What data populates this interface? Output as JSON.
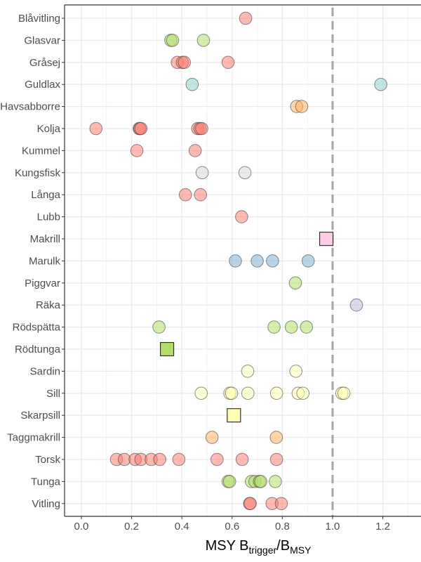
{
  "chart_data": {
    "type": "scatter",
    "xlabel": {
      "main": "MSY B",
      "sub1": "trigger",
      "sep": "/B",
      "sub2": "MSY"
    },
    "xlim": [
      -0.067,
      1.352
    ],
    "xticks": [
      "0.0",
      "0.2",
      "0.4",
      "0.6",
      "0.8",
      "1.0",
      "1.2"
    ],
    "grid": true,
    "reference_line": {
      "x": 1.0,
      "style": "dashed",
      "color": "#a6a6a6"
    },
    "categories": [
      "Blåvitling",
      "Glasvar",
      "Gråsej",
      "Guldlax",
      "Havsabborre",
      "Kolja",
      "Kummel",
      "Kungsfisk",
      "Långa",
      "Lubb",
      "Makrill",
      "Marulk",
      "Piggvar",
      "Räka",
      "Rödspätta",
      "Rödtunga",
      "Sardin",
      "Sill",
      "Skarpsill",
      "Taggmakrill",
      "Torsk",
      "Tunga",
      "Vitling"
    ],
    "series": [
      {
        "category": "Blåvitling",
        "color": "#FB8072",
        "marker": "circle",
        "values": [
          0.654
        ]
      },
      {
        "category": "Glasvar",
        "color": "#B3DE69",
        "marker": "circle",
        "values": [
          0.356,
          0.363,
          0.486
        ]
      },
      {
        "category": "Gråsej",
        "color": "#FB8072",
        "marker": "circle",
        "values": [
          0.382,
          0.402,
          0.41,
          0.584
        ]
      },
      {
        "category": "Guldlax",
        "color": "#8DD3C7",
        "marker": "circle",
        "values": [
          0.441,
          1.192
        ]
      },
      {
        "category": "Havsabborre",
        "color": "#FDB462",
        "marker": "circle",
        "values": [
          0.857,
          0.877
        ]
      },
      {
        "category": "Kolja",
        "color": "#FB8072",
        "marker": "circle",
        "values": [
          0.058,
          0.23,
          0.233,
          0.237,
          0.463,
          0.472,
          0.479
        ]
      },
      {
        "category": "Kummel",
        "color": "#FB8072",
        "marker": "circle",
        "values": [
          0.221,
          0.453
        ]
      },
      {
        "category": "Kungsfisk",
        "color": "#D9D9D9",
        "marker": "circle",
        "values": [
          0.481,
          0.651
        ]
      },
      {
        "category": "Långa",
        "color": "#FB8072",
        "marker": "circle",
        "values": [
          0.414,
          0.474
        ]
      },
      {
        "category": "Lubb",
        "color": "#FB8072",
        "marker": "circle",
        "values": [
          0.638
        ]
      },
      {
        "category": "Makrill",
        "color": "#FCCDE5",
        "marker": "square",
        "values": [
          0.975
        ]
      },
      {
        "category": "Marulk",
        "color": "#80B1D3",
        "marker": "circle",
        "values": [
          0.613,
          0.7,
          0.761,
          0.903
        ]
      },
      {
        "category": "Piggvar",
        "color": "#B3DE69",
        "marker": "circle",
        "values": [
          0.852
        ]
      },
      {
        "category": "Räka",
        "color": "#BEBADA",
        "marker": "circle",
        "values": [
          1.095
        ]
      },
      {
        "category": "Rödspätta",
        "color": "#B3DE69",
        "marker": "circle",
        "values": [
          0.309,
          0.767,
          0.836,
          0.896
        ]
      },
      {
        "category": "Rödtunga",
        "color": "#B3DE69",
        "marker": "square",
        "values": [
          0.341
        ]
      },
      {
        "category": "Sardin",
        "color": "#FFFFB3",
        "marker": "circle",
        "values": [
          0.662,
          0.854
        ]
      },
      {
        "category": "Sill",
        "color": "#FFFFB3",
        "marker": "circle",
        "values": [
          0.477,
          0.591,
          0.598,
          0.663,
          0.777,
          0.863,
          0.882,
          1.037,
          1.045
        ]
      },
      {
        "category": "Skarpsill",
        "color": "#FFFFB3",
        "marker": "square",
        "values": [
          0.607
        ]
      },
      {
        "category": "Taggmakrill",
        "color": "#FDB462",
        "marker": "circle",
        "values": [
          0.52,
          0.776
        ]
      },
      {
        "category": "Torsk",
        "color": "#FB8072",
        "marker": "circle",
        "values": [
          0.14,
          0.171,
          0.214,
          0.237,
          0.278,
          0.312,
          0.388,
          0.54,
          0.64,
          0.777
        ]
      },
      {
        "category": "Tunga",
        "color": "#B3DE69",
        "marker": "circle",
        "values": [
          0.584,
          0.59,
          0.677,
          0.691,
          0.709,
          0.714,
          0.772
        ]
      },
      {
        "category": "Vitling",
        "color": "#FB8072",
        "marker": "circle",
        "values": [
          0.67,
          0.672,
          0.759,
          0.796
        ]
      }
    ]
  }
}
